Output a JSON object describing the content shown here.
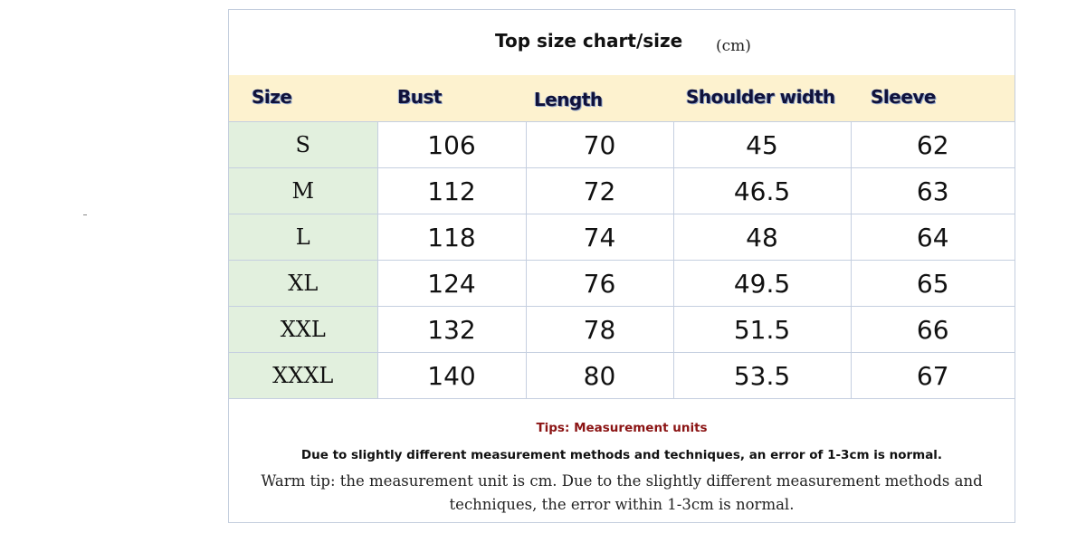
{
  "title": "Top size chart/size",
  "unit": "(cm)",
  "columns": [
    "Size",
    "Bust",
    "Length",
    "Shoulder width",
    "Sleeve"
  ],
  "rows": [
    [
      "S",
      "106",
      "70",
      "45",
      "62"
    ],
    [
      "M",
      "112",
      "72",
      "46.5",
      "63"
    ],
    [
      "L",
      "118",
      "74",
      "48",
      "64"
    ],
    [
      "XL",
      "124",
      "76",
      "49.5",
      "65"
    ],
    [
      "XXL",
      "132",
      "78",
      "51.5",
      "66"
    ],
    [
      "XXXL",
      "140",
      "80",
      "53.5",
      "67"
    ]
  ],
  "tips": {
    "heading": "Tips: Measurement units",
    "note": "Due to slightly different measurement methods and techniques, an error of 1-3cm is normal.",
    "warm_tip": "Warm tip: the measurement unit is cm. Due to the slightly different measurement methods and techniques, the error within 1-3cm is normal."
  },
  "colors": {
    "header_background": "#fdf2cf",
    "size_column_background": "#e2f0de",
    "grid_lines": "#c5cfe0",
    "tips_heading": "#8b1414"
  }
}
